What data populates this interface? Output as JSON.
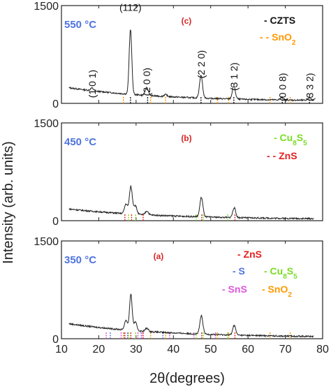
{
  "chart_data": {
    "type": "line",
    "xlabel": "2θ(degrees)",
    "ylabel": "Intensity (arb. units)",
    "xlim": [
      10,
      80
    ],
    "xticks": [
      10,
      20,
      30,
      40,
      50,
      60,
      70,
      80
    ],
    "panels": [
      {
        "id": "c",
        "panel_label": "(c)",
        "temperature": "550 °C",
        "ylim": [
          0,
          1500
        ],
        "yticks": [
          0,
          1500
        ],
        "pattern_peaks": [
          {
            "x": 18.2,
            "y": 40
          },
          {
            "x": 28.5,
            "y": 1000
          },
          {
            "x": 32.9,
            "y": 120
          },
          {
            "x": 37.9,
            "y": 30
          },
          {
            "x": 47.4,
            "y": 350
          },
          {
            "x": 56.2,
            "y": 200
          },
          {
            "x": 69.1,
            "y": 40
          },
          {
            "x": 76.5,
            "y": 50
          }
        ],
        "baseline": {
          "start": 240,
          "end": 30
        },
        "annotations": [
          {
            "text": "(1 0 1)",
            "x": 18.2,
            "y": 300,
            "rotate": -90
          },
          {
            "text": "(112)",
            "x": 28.5,
            "y": 1420,
            "rotate": 0
          },
          {
            "text": "(2 0 0)",
            "x": 32.8,
            "y": 330,
            "rotate": -90
          },
          {
            "text": "(2 2 0)",
            "x": 47.4,
            "y": 600,
            "rotate": -90
          },
          {
            "text": "(3 1 2)",
            "x": 56.2,
            "y": 410,
            "rotate": -90
          },
          {
            "text": "(0 0 8)",
            "x": 69.2,
            "y": 250,
            "rotate": -90
          },
          {
            "text": "(3 3 2)",
            "x": 76.5,
            "y": 250,
            "rotate": -90
          }
        ],
        "legend": [
          {
            "marker": "-",
            "label": "CZTS",
            "color": "#111111"
          },
          {
            "marker": "- -",
            "label": "SnO",
            "sub": "2",
            "color": "#ff9900"
          }
        ],
        "ref_lines": [
          {
            "color": "#111111",
            "x": [
              28.5,
              33.1,
              47.4,
              56.2,
              69.2,
              76.5
            ]
          },
          {
            "color": "#ff9900",
            "x": [
              26.6,
              33.9,
              37.9,
              51.8,
              54.8,
              65.9,
              71.3
            ]
          }
        ]
      },
      {
        "id": "b",
        "panel_label": "(b)",
        "temperature": "450 °C",
        "ylim": [
          0,
          1500
        ],
        "yticks": [
          0,
          1500
        ],
        "pattern_peaks": [
          {
            "x": 27.3,
            "y": 150
          },
          {
            "x": 28.6,
            "y": 420
          },
          {
            "x": 29.8,
            "y": 130
          },
          {
            "x": 32.9,
            "y": 60
          },
          {
            "x": 47.5,
            "y": 300
          },
          {
            "x": 56.3,
            "y": 150
          }
        ],
        "baseline": {
          "start": 180,
          "end": 20
        },
        "legend": [
          {
            "marker": "-",
            "label": "Cu",
            "sub": "8",
            "label2": "S",
            "sub2": "5",
            "color": "#77dd22"
          },
          {
            "marker": "- -",
            "label": "ZnS",
            "color": "#e32020"
          }
        ],
        "ref_lines": [
          {
            "color": "#77dd22",
            "x": [
              28.0,
              29.9,
              46.1,
              48.0,
              54.6
            ]
          },
          {
            "color": "#e32020",
            "x": [
              27.0,
              28.8,
              31.9,
              47.6,
              56.5
            ]
          }
        ]
      },
      {
        "id": "a",
        "panel_label": "(a)",
        "temperature": "350 °C",
        "ylim": [
          0,
          1500
        ],
        "yticks": [
          0,
          1500
        ],
        "pattern_peaks": [
          {
            "x": 27.3,
            "y": 150
          },
          {
            "x": 28.6,
            "y": 550
          },
          {
            "x": 29.8,
            "y": 130
          },
          {
            "x": 32.9,
            "y": 50
          },
          {
            "x": 47.5,
            "y": 280
          },
          {
            "x": 56.3,
            "y": 150
          }
        ],
        "baseline": {
          "start": 230,
          "end": 20
        },
        "legend": [
          {
            "marker": "-",
            "label": "ZnS",
            "color": "#e32020"
          },
          {
            "marker": "-",
            "label": "S",
            "color": "#4e73df"
          },
          {
            "marker": "-",
            "label": "Cu",
            "sub": "8",
            "label2": "S",
            "sub2": "5",
            "color": "#77dd22"
          },
          {
            "marker": "-",
            "label": "SnS",
            "color": "#dd55dd"
          },
          {
            "marker": "-",
            "label": "SnO",
            "sub": "2",
            "color": "#ff9900"
          }
        ],
        "ref_lines": [
          {
            "color": "#e32020",
            "x": [
              27.0,
              28.6,
              31.9,
              47.6,
              56.5
            ]
          },
          {
            "color": "#4e73df",
            "x": [
              23.1,
              26.7,
              27.7,
              31.4,
              37.2
            ]
          },
          {
            "color": "#77dd22",
            "x": [
              28.0,
              29.9,
              46.1,
              48.0,
              54.6
            ]
          },
          {
            "color": "#dd55dd",
            "x": [
              22.0,
              26.0,
              30.5,
              31.5,
              39.0,
              45.5,
              51.3
            ]
          },
          {
            "color": "#ff9900",
            "x": [
              26.6,
              33.9,
              37.9,
              51.8,
              54.8,
              65.9,
              71.3
            ]
          }
        ]
      }
    ]
  }
}
